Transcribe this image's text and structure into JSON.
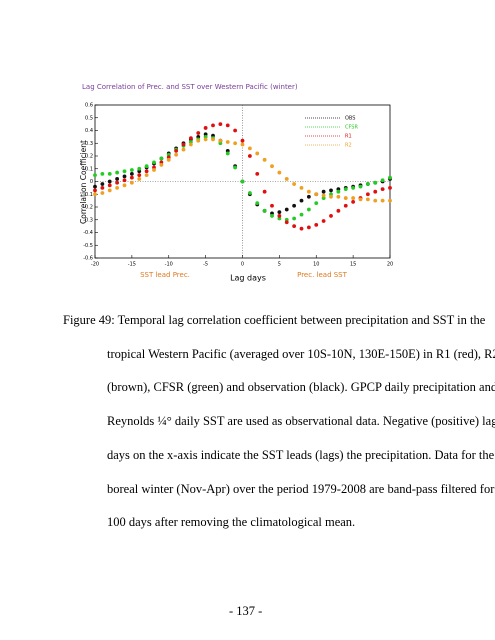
{
  "chart_data": {
    "type": "scatter",
    "title": "Lag Correlation of Prec. and SST over Western Pacific (winter)",
    "y_label": "Correlation Coefficient",
    "x_label": "Lag days",
    "annotations": [
      "SST lead Prec.",
      "Prec. lead SST"
    ],
    "x": [
      -20,
      -19,
      -18,
      -17,
      -16,
      -15,
      -14,
      -13,
      -12,
      -11,
      -10,
      -9,
      -8,
      -7,
      -6,
      -5,
      -4,
      -3,
      -2,
      -1,
      0,
      1,
      2,
      3,
      4,
      5,
      6,
      7,
      8,
      9,
      10,
      11,
      12,
      13,
      14,
      15,
      16,
      17,
      18,
      19,
      20
    ],
    "series": [
      {
        "name": "OBS",
        "color": "#111111",
        "values": [
          -0.04,
          -0.02,
          0.0,
          0.02,
          0.04,
          0.06,
          0.08,
          0.11,
          0.14,
          0.18,
          0.22,
          0.26,
          0.3,
          0.33,
          0.35,
          0.37,
          0.36,
          0.32,
          0.24,
          0.12,
          0.0,
          -0.1,
          -0.18,
          -0.23,
          -0.25,
          -0.24,
          -0.22,
          -0.19,
          -0.15,
          -0.12,
          -0.1,
          -0.08,
          -0.07,
          -0.06,
          -0.05,
          -0.04,
          -0.03,
          -0.02,
          -0.01,
          0.0,
          0.02
        ]
      },
      {
        "name": "CFSR",
        "color": "#22cc22",
        "values": [
          0.05,
          0.06,
          0.06,
          0.07,
          0.08,
          0.09,
          0.1,
          0.12,
          0.15,
          0.18,
          0.21,
          0.25,
          0.28,
          0.31,
          0.33,
          0.35,
          0.34,
          0.3,
          0.22,
          0.11,
          0.0,
          -0.09,
          -0.17,
          -0.23,
          -0.27,
          -0.29,
          -0.3,
          -0.29,
          -0.26,
          -0.22,
          -0.17,
          -0.13,
          -0.1,
          -0.08,
          -0.06,
          -0.05,
          -0.04,
          -0.02,
          -0.01,
          0.01,
          0.03
        ]
      },
      {
        "name": "R1",
        "color": "#e01010",
        "values": [
          -0.07,
          -0.05,
          -0.03,
          -0.01,
          0.01,
          0.03,
          0.05,
          0.08,
          0.11,
          0.15,
          0.19,
          0.24,
          0.29,
          0.34,
          0.38,
          0.42,
          0.44,
          0.45,
          0.44,
          0.4,
          0.32,
          0.2,
          0.06,
          -0.08,
          -0.19,
          -0.27,
          -0.32,
          -0.35,
          -0.37,
          -0.36,
          -0.34,
          -0.31,
          -0.27,
          -0.23,
          -0.19,
          -0.16,
          -0.13,
          -0.1,
          -0.08,
          -0.06,
          -0.05
        ]
      },
      {
        "name": "R2",
        "color": "#f0a020",
        "values": [
          -0.1,
          -0.09,
          -0.07,
          -0.05,
          -0.03,
          -0.01,
          0.02,
          0.05,
          0.09,
          0.13,
          0.17,
          0.21,
          0.25,
          0.29,
          0.32,
          0.33,
          0.33,
          0.32,
          0.31,
          0.3,
          0.29,
          0.26,
          0.22,
          0.17,
          0.12,
          0.07,
          0.02,
          -0.02,
          -0.05,
          -0.08,
          -0.1,
          -0.11,
          -0.12,
          -0.12,
          -0.13,
          -0.13,
          -0.14,
          -0.14,
          -0.15,
          -0.15,
          -0.15
        ]
      }
    ],
    "xlim": [
      -20,
      20
    ],
    "xticks": [
      -20,
      -15,
      -10,
      -5,
      0,
      5,
      10,
      15,
      20
    ],
    "ylim": [
      -0.6,
      0.6
    ],
    "yticks": [
      0.6,
      0.5,
      0.4,
      0.3,
      0.2,
      0.1,
      0,
      -0.1,
      -0.2,
      -0.3,
      -0.4,
      -0.5,
      -0.6
    ]
  },
  "caption": {
    "lines": [
      "Figure 49: Temporal lag correlation coefficient between precipitation and SST in the",
      "tropical Western Pacific (averaged over 10S-10N, 130E-150E) in R1 (red), R2",
      "(brown), CFSR (green) and observation (black). GPCP daily precipitation and",
      "Reynolds ¼° daily SST are used as observational data. Negative (positive) lag",
      "days on the x-axis indicate the SST leads (lags) the precipitation. Data for the",
      "boreal winter (Nov-Apr) over the period 1979-2008 are band-pass filtered for 20-",
      "100 days after removing the climatological mean."
    ]
  },
  "page_number": "- 137 -"
}
